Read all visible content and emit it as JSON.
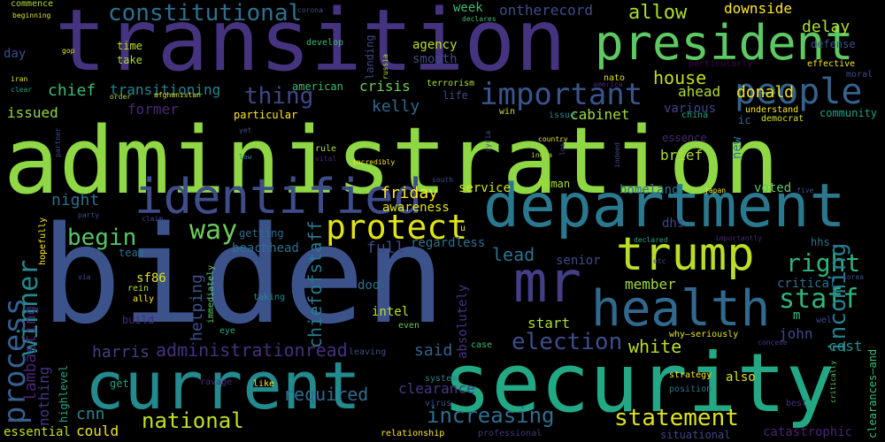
{
  "words": [
    {
      "text": "administration",
      "size": 104,
      "color": "#8FD744"
    },
    {
      "text": "biden",
      "size": 152,
      "color": "#3B528B"
    },
    {
      "text": "transition",
      "size": 96,
      "color": "#46337F"
    },
    {
      "text": "security",
      "size": 92,
      "color": "#22A884"
    },
    {
      "text": "current",
      "size": 74,
      "color": "#238A8D"
    },
    {
      "text": "department",
      "size": 68,
      "color": "#2A788E"
    },
    {
      "text": "president",
      "size": 54,
      "color": "#5DC963"
    },
    {
      "text": "health",
      "size": 56,
      "color": "#31688E"
    },
    {
      "text": "identified",
      "size": 54,
      "color": "#3E4C8A"
    },
    {
      "text": "mr",
      "size": 64,
      "color": "#433E85"
    },
    {
      "text": "trump",
      "size": 52,
      "color": "#BADE28"
    },
    {
      "text": "people",
      "size": 40,
      "color": "#33638D"
    },
    {
      "text": "protect",
      "size": 38,
      "color": "#DFE318"
    },
    {
      "text": "important",
      "size": 34,
      "color": "#3A548C"
    },
    {
      "text": "process",
      "size": 34,
      "color": "#355F8D"
    },
    {
      "text": "winner",
      "size": 30,
      "color": "#23898E"
    },
    {
      "text": "way",
      "size": 30,
      "color": "#6CCD5A"
    },
    {
      "text": "staff",
      "size": 30,
      "color": "#2FB47C"
    },
    {
      "text": "right",
      "size": 28,
      "color": "#2FB47C"
    },
    {
      "text": "constitutional",
      "size": 26,
      "color": "#2D718E"
    },
    {
      "text": "thing",
      "size": 26,
      "color": "#3F4788"
    },
    {
      "text": "begin",
      "size": 26,
      "color": "#56C667"
    },
    {
      "text": "election",
      "size": 26,
      "color": "#3D4D8A"
    },
    {
      "text": "statement",
      "size": 26,
      "color": "#DCE319"
    },
    {
      "text": "national",
      "size": 24,
      "color": "#C2DF23"
    },
    {
      "text": "increasing",
      "size": 24,
      "color": "#2E6E8E"
    },
    {
      "text": "incoming",
      "size": 26,
      "color": "#26818E"
    },
    {
      "text": "allow",
      "size": 22,
      "color": "#ADDC30"
    },
    {
      "text": "administrationread",
      "size": 20,
      "color": "#46307E"
    },
    {
      "text": "required",
      "size": 20,
      "color": "#2F6C8E"
    },
    {
      "text": "lead",
      "size": 20,
      "color": "#2C728E"
    },
    {
      "text": "house",
      "size": 20,
      "color": "#C2DF23"
    },
    {
      "text": "white",
      "size": 20,
      "color": "#B8DE29"
    },
    {
      "text": "harris",
      "size": 18,
      "color": "#433E85"
    },
    {
      "text": "chiefofstaff",
      "size": 20,
      "color": "#29798E"
    },
    {
      "text": "helping",
      "size": 18,
      "color": "#3B528B"
    },
    {
      "text": "lambasting",
      "size": 18,
      "color": "#482576"
    },
    {
      "text": "nothing",
      "size": 16,
      "color": "#453581"
    },
    {
      "text": "cnn",
      "size": 18,
      "color": "#24868E"
    },
    {
      "text": "could",
      "size": 16,
      "color": "#F1E51D"
    },
    {
      "text": "donald",
      "size": 18,
      "color": "#F4E61E"
    },
    {
      "text": "ontherecord",
      "size": 16,
      "color": "#3E4C8A"
    },
    {
      "text": "week",
      "size": 14,
      "color": "#3BBB75"
    },
    {
      "text": "kelly",
      "size": 18,
      "color": "#31688E"
    },
    {
      "text": "cabinet",
      "size": 16,
      "color": "#A0DA39"
    },
    {
      "text": "delay",
      "size": 18,
      "color": "#B2DD2D"
    },
    {
      "text": "downside",
      "size": 16,
      "color": "#FDE725"
    },
    {
      "text": "ahead",
      "size": 16,
      "color": "#ADDC30"
    },
    {
      "text": "brief",
      "size": 16,
      "color": "#B2DD2D"
    },
    {
      "text": "crisis",
      "size": 16,
      "color": "#6ECE58"
    },
    {
      "text": "agency",
      "size": 14,
      "color": "#B8DE29"
    },
    {
      "text": "smooth",
      "size": 14,
      "color": "#3E4A89"
    },
    {
      "text": "chief",
      "size": 18,
      "color": "#3BBB75"
    },
    {
      "text": "transitioning",
      "size": 16,
      "color": "#25848E"
    },
    {
      "text": "former",
      "size": 16,
      "color": "#482878"
    },
    {
      "text": "issued",
      "size": 16,
      "color": "#90D743"
    },
    {
      "text": "night",
      "size": 18,
      "color": "#2D708E"
    },
    {
      "text": "friday",
      "size": 18,
      "color": "#FDE725"
    },
    {
      "text": "awareness",
      "size": 14,
      "color": "#DFE318"
    },
    {
      "text": "full",
      "size": 18,
      "color": "#3F4788"
    },
    {
      "text": "regardless",
      "size": 14,
      "color": "#2D708E"
    },
    {
      "text": "beachhead",
      "size": 14,
      "color": "#2D708E"
    },
    {
      "text": "said",
      "size": 18,
      "color": "#33638D"
    },
    {
      "text": "start",
      "size": 16,
      "color": "#ADDC30"
    },
    {
      "text": "member",
      "size": 16,
      "color": "#A0DA39"
    },
    {
      "text": "senior",
      "size": 14,
      "color": "#3E4C8A"
    },
    {
      "text": "cost",
      "size": 16,
      "color": "#21908C"
    },
    {
      "text": "john",
      "size": 16,
      "color": "#404688"
    },
    {
      "text": "intel",
      "size": 14,
      "color": "#C2DF23"
    },
    {
      "text": "dod",
      "size": 14,
      "color": "#2D718E"
    },
    {
      "text": "sf86",
      "size": 14,
      "color": "#DCE319"
    },
    {
      "text": "clearance",
      "size": 16,
      "color": "#443983"
    },
    {
      "text": "absolutely",
      "size": 14,
      "color": "#453581"
    },
    {
      "text": "critical",
      "size": 14,
      "color": "#2E6E8E"
    },
    {
      "text": "catastrophic",
      "size": 14,
      "color": "#482173"
    },
    {
      "text": "situational",
      "size": 12,
      "color": "#404688"
    },
    {
      "text": "essential",
      "size": 14,
      "color": "#C2DF23"
    },
    {
      "text": "highlevel",
      "size": 12,
      "color": "#22A884"
    },
    {
      "text": "community",
      "size": 12,
      "color": "#1FA187"
    },
    {
      "text": "various",
      "size": 14,
      "color": "#3F4788"
    },
    {
      "text": "homeland",
      "size": 14,
      "color": "#2D708E"
    },
    {
      "text": "human",
      "size": 12,
      "color": "#ADDC30"
    },
    {
      "text": "service",
      "size": 14,
      "color": "#D2E21B"
    },
    {
      "text": "dhs",
      "size": 14,
      "color": "#3F4788"
    },
    {
      "text": "hhs",
      "size": 12,
      "color": "#2D718E"
    },
    {
      "text": "voted",
      "size": 14,
      "color": "#5DC963"
    },
    {
      "text": "new",
      "size": 14,
      "color": "#2A788E"
    },
    {
      "text": "clearances—and",
      "size": 12,
      "color": "#3BBB75"
    },
    {
      "text": "understand",
      "size": 10,
      "color": "#FDE725"
    },
    {
      "text": "essence",
      "size": 12,
      "color": "#482576"
    },
    {
      "text": "democrat",
      "size": 10,
      "color": "#D2E21B"
    },
    {
      "text": "effective",
      "size": 10,
      "color": "#F4E61E"
    },
    {
      "text": "moral",
      "size": 10,
      "color": "#3E4A89"
    },
    {
      "text": "defense",
      "size": 12,
      "color": "#3B528B"
    },
    {
      "text": "particularly",
      "size": 10,
      "color": "#440154"
    },
    {
      "text": "nato",
      "size": 10,
      "color": "#DFE318"
    },
    {
      "text": "america",
      "size": 8,
      "color": "#482576"
    },
    {
      "text": "china",
      "size": 10,
      "color": "#22A884"
    },
    {
      "text": "issue",
      "size": 10,
      "color": "#24868E"
    },
    {
      "text": "win",
      "size": 10,
      "color": "#C8E020"
    },
    {
      "text": "ic",
      "size": 12,
      "color": "#2D708E"
    },
    {
      "text": "also",
      "size": 14,
      "color": "#DCE319"
    },
    {
      "text": "best",
      "size": 10,
      "color": "#472D7B"
    },
    {
      "text": "strategy",
      "size": 10,
      "color": "#FDE725"
    },
    {
      "text": "position",
      "size": 10,
      "color": "#2D718E"
    },
    {
      "text": "why—seriously",
      "size": 10,
      "color": "#DFE318"
    },
    {
      "text": "concede",
      "size": 8,
      "color": "#453781"
    },
    {
      "text": "well",
      "size": 10,
      "color": "#3F4788"
    },
    {
      "text": "m",
      "size": 14,
      "color": "#3BBB75"
    },
    {
      "text": "case",
      "size": 10,
      "color": "#3BBB75"
    },
    {
      "text": "leaving",
      "size": 10,
      "color": "#3E4C8A"
    },
    {
      "text": "relationship",
      "size": 10,
      "color": "#FDE725"
    },
    {
      "text": "professional",
      "size": 10,
      "color": "#46337F"
    },
    {
      "text": "virus",
      "size": 10,
      "color": "#3E4C8A"
    },
    {
      "text": "system",
      "size": 10,
      "color": "#26818E"
    },
    {
      "text": "even",
      "size": 10,
      "color": "#5DC963"
    },
    {
      "text": "like",
      "size": 10,
      "color": "#FDE725"
    },
    {
      "text": "ravage",
      "size": 10,
      "color": "#482878"
    },
    {
      "text": "get",
      "size": 12,
      "color": "#1FA187"
    },
    {
      "text": "eye",
      "size": 10,
      "color": "#22A884"
    },
    {
      "text": "taking",
      "size": 10,
      "color": "#24868E"
    },
    {
      "text": "immediately",
      "size": 10,
      "color": "#5DC963"
    },
    {
      "text": "build",
      "size": 12,
      "color": "#482878"
    },
    {
      "text": "ally",
      "size": 10,
      "color": "#FDE725"
    },
    {
      "text": "rein",
      "size": 10,
      "color": "#ADDC30"
    },
    {
      "text": "via",
      "size": 8,
      "color": "#3E4C8A"
    },
    {
      "text": "team",
      "size": 12,
      "color": "#2D718E"
    },
    {
      "text": "hopefully",
      "size": 10,
      "color": "#FDE725"
    },
    {
      "text": "party",
      "size": 8,
      "color": "#3E4C8A"
    },
    {
      "text": "getting",
      "size": 12,
      "color": "#2E6E8E"
    },
    {
      "text": "claim",
      "size": 8,
      "color": "#3E4A89"
    },
    {
      "text": "u",
      "size": 10,
      "color": "#FDE725"
    },
    {
      "text": "south",
      "size": 8,
      "color": "#3E4C8A"
    },
    {
      "text": "vital",
      "size": 8,
      "color": "#482576"
    },
    {
      "text": "law",
      "size": 8,
      "color": "#2D718E"
    },
    {
      "text": "rule",
      "size": 10,
      "color": "#ADDC30"
    },
    {
      "text": "incredibly",
      "size": 8,
      "color": "#FDE725"
    },
    {
      "text": "yet",
      "size": 8,
      "color": "#3E4C8A"
    },
    {
      "text": "particular",
      "size": 12,
      "color": "#FDE725"
    },
    {
      "text": "american",
      "size": 12,
      "color": "#3BBB75"
    },
    {
      "text": "terrorism",
      "size": 10,
      "color": "#ADDC30"
    },
    {
      "text": "life",
      "size": 12,
      "color": "#3E4C8A"
    },
    {
      "text": "afghanistan",
      "size": 8,
      "color": "#DFE318"
    },
    {
      "text": "clear",
      "size": 8,
      "color": "#1FA187"
    },
    {
      "text": "iran",
      "size": 8,
      "color": "#DFE318"
    },
    {
      "text": "order",
      "size": 8,
      "color": "#ADDC30"
    },
    {
      "text": "gop",
      "size": 8,
      "color": "#DFE318"
    },
    {
      "text": "time",
      "size": 12,
      "color": "#C2DF23"
    },
    {
      "text": "take",
      "size": 12,
      "color": "#ADDC30"
    },
    {
      "text": "day",
      "size": 14,
      "color": "#3E4C8A"
    },
    {
      "text": "develop",
      "size": 10,
      "color": "#3BBB75"
    },
    {
      "text": "russia",
      "size": 8,
      "color": "#B8DE29"
    },
    {
      "text": "landing",
      "size": 12,
      "color": "#3F4788"
    },
    {
      "text": "corona",
      "size": 8,
      "color": "#3E4C8A"
    },
    {
      "text": "declares",
      "size": 8,
      "color": "#3BBB75"
    },
    {
      "text": "commence",
      "size": 10,
      "color": "#ADDC30"
    },
    {
      "text": "beginning",
      "size": 8,
      "color": "#DFE318"
    },
    {
      "text": "partner",
      "size": 8,
      "color": "#3E4A89"
    },
    {
      "text": "syria",
      "size": 8,
      "color": "#3E4C8A"
    },
    {
      "text": "india",
      "size": 8,
      "color": "#ADDC30"
    },
    {
      "text": "lost",
      "size": 8,
      "color": "#3E4A89"
    },
    {
      "text": "indeed",
      "size": 8,
      "color": "#3F4788"
    },
    {
      "text": "country",
      "size": 8,
      "color": "#DFE318"
    },
    {
      "text": "japan",
      "size": 8,
      "color": "#FDE725"
    },
    {
      "text": "five",
      "size": 8,
      "color": "#3E4C8A"
    },
    {
      "text": "declared",
      "size": 8,
      "color": "#22A884"
    },
    {
      "text": "importantly",
      "size": 8,
      "color": "#482576"
    },
    {
      "text": "etc",
      "size": 8,
      "color": "#3E4C8A"
    },
    {
      "text": "korea",
      "size": 8,
      "color": "#3E4A89"
    },
    {
      "text": "critically",
      "size": 8,
      "color": "#5DC963"
    }
  ]
}
